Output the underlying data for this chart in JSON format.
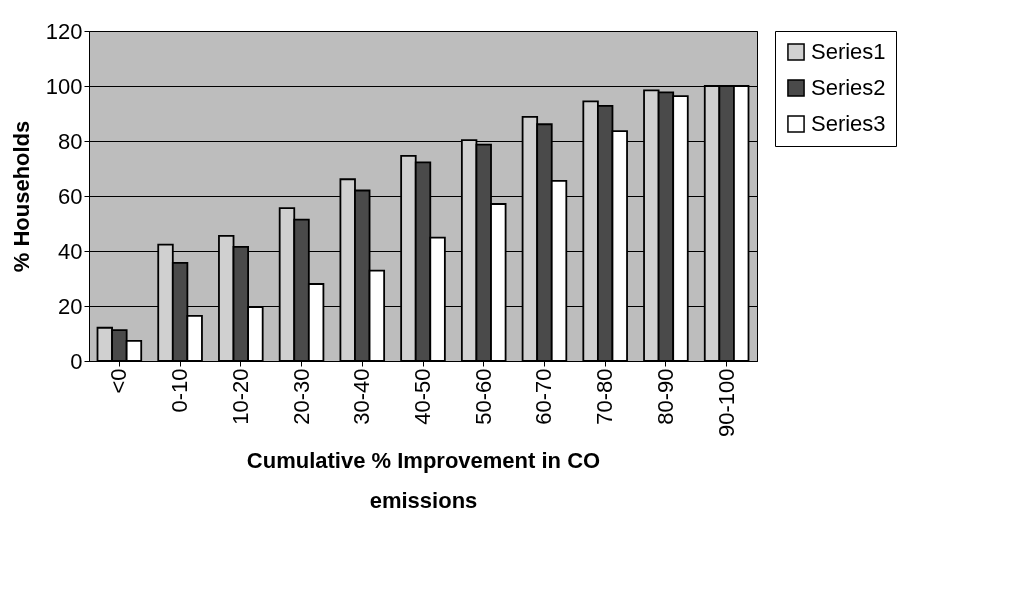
{
  "chart_data": {
    "type": "bar",
    "xlabel": "Cumulative % Improvement in CO emissions",
    "ylabel": "% Households",
    "categories": [
      "<0",
      "0-10",
      "10-20",
      "20-30",
      "30-40",
      "40-50",
      "50-60",
      "60-70",
      "70-80",
      "80-90",
      "90-100"
    ],
    "series": [
      {
        "name": "Series1",
        "color": "#d0d0d0",
        "values": [
          12.1,
          42.3,
          45.5,
          55.6,
          66.1,
          74.6,
          80.3,
          88.8,
          94.4,
          98.4,
          100
        ]
      },
      {
        "name": "Series2",
        "color": "#4a4a4a",
        "values": [
          11.2,
          35.7,
          41.5,
          51.4,
          62,
          72.2,
          78.7,
          86.1,
          92.8,
          97.7,
          100
        ]
      },
      {
        "name": "Series3",
        "color": "#ffffff",
        "values": [
          7.3,
          16.4,
          19.6,
          28,
          32.9,
          44.9,
          57.1,
          65.5,
          83.6,
          96.3,
          100
        ]
      }
    ],
    "ylim": [
      0,
      120
    ],
    "yticks": [
      0,
      20,
      40,
      60,
      80,
      100,
      120
    ],
    "grid": "y",
    "legend": "right"
  }
}
